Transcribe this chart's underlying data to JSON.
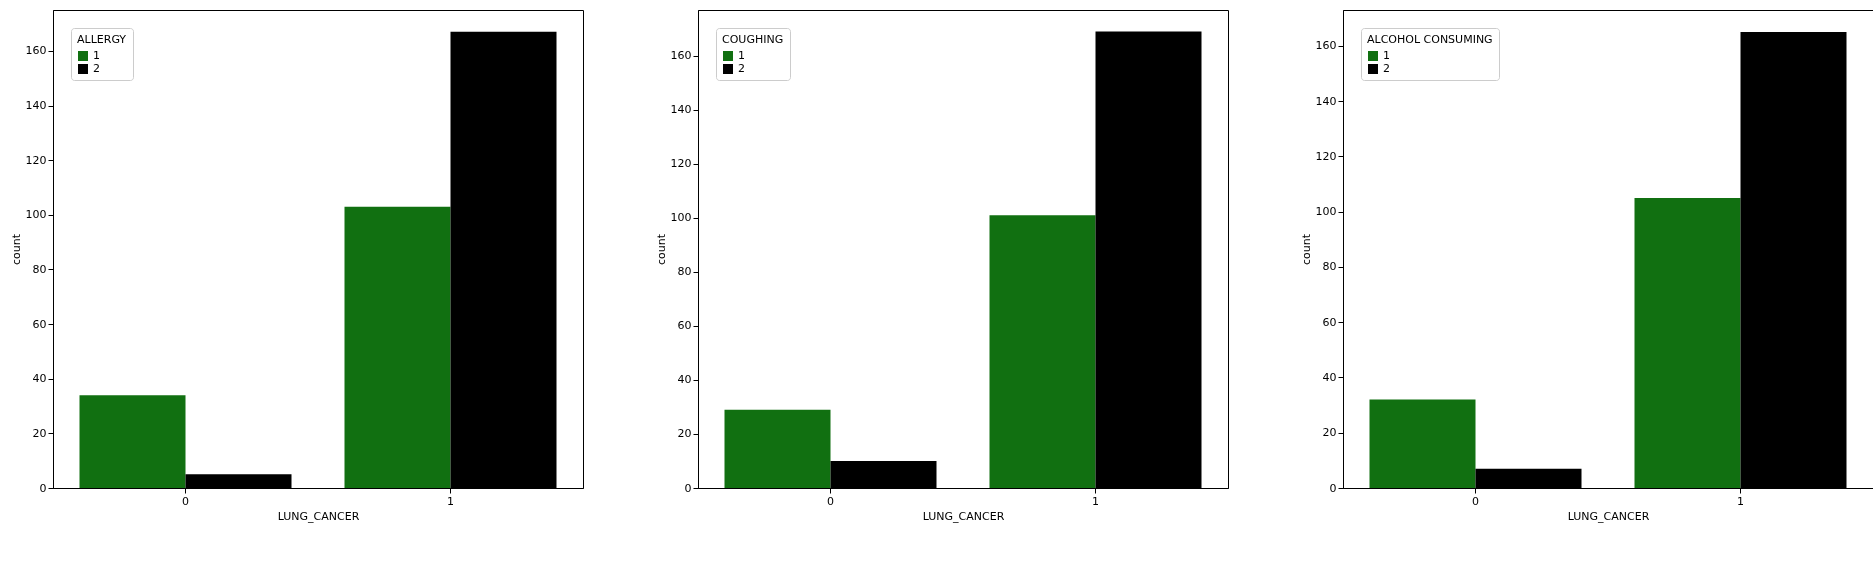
{
  "chart_data": [
    {
      "type": "bar",
      "categories": [
        "0",
        "1"
      ],
      "xlabel": "LUNG_CANCER",
      "ylabel": "count",
      "legend_title": "ALLERGY",
      "legend": "top left",
      "grid": false,
      "ylim": [
        0,
        175
      ],
      "yticks": [
        0,
        20,
        40,
        60,
        80,
        100,
        120,
        140,
        160
      ],
      "series": [
        {
          "name": "1",
          "color": "#117011",
          "values": [
            34,
            103
          ]
        },
        {
          "name": "2",
          "color": "#000000",
          "values": [
            5,
            167
          ]
        }
      ]
    },
    {
      "type": "bar",
      "categories": [
        "0",
        "1"
      ],
      "xlabel": "LUNG_CANCER",
      "ylabel": "count",
      "legend_title": "COUGHING",
      "legend": "top left",
      "grid": false,
      "ylim": [
        0,
        177
      ],
      "yticks": [
        0,
        20,
        40,
        60,
        80,
        100,
        120,
        140,
        160
      ],
      "series": [
        {
          "name": "1",
          "color": "#117011",
          "values": [
            29,
            101
          ]
        },
        {
          "name": "2",
          "color": "#000000",
          "values": [
            10,
            169
          ]
        }
      ]
    },
    {
      "type": "bar",
      "categories": [
        "0",
        "1"
      ],
      "xlabel": "LUNG_CANCER",
      "ylabel": "count",
      "legend_title": "ALCOHOL CONSUMING",
      "legend": "top left",
      "grid": false,
      "ylim": [
        0,
        173
      ],
      "yticks": [
        0,
        20,
        40,
        60,
        80,
        100,
        120,
        140,
        160
      ],
      "series": [
        {
          "name": "1",
          "color": "#117011",
          "values": [
            32,
            105
          ]
        },
        {
          "name": "2",
          "color": "#000000",
          "values": [
            7,
            165
          ]
        }
      ]
    }
  ]
}
